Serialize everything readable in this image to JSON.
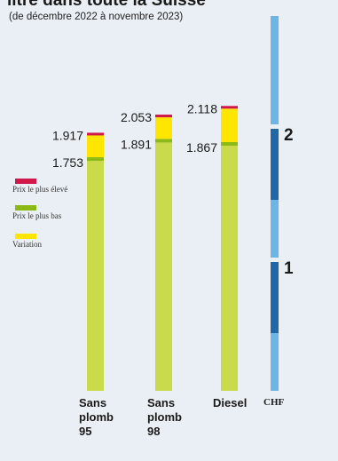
{
  "title": "litre dans toute la Suisse",
  "subtitle": "(de décembre 2022 à novembre 2023)",
  "colors": {
    "background": "#e9eff5",
    "lowest": "#8ab918",
    "lowest_light": "#c9da4a",
    "variation": "#ffe600",
    "highest": "#d0174a",
    "axis_light": "#6cb6e6",
    "axis_dark": "#1f67a6"
  },
  "legend": {
    "placement": "left",
    "items": [
      {
        "label": "Prix le plus élevé",
        "color": "#d0174a"
      },
      {
        "label": "Prix le plus bas",
        "color": "#8ab918"
      },
      {
        "label": "Variation",
        "color": "#ffe600"
      }
    ]
  },
  "chart_data": {
    "type": "bar",
    "stacked": true,
    "unit": "CHF",
    "ylim": [
      0,
      2.4
    ],
    "axis_ticks": [
      1,
      2
    ],
    "categories": [
      {
        "label_lines": [
          "Sans",
          "plomb",
          "95"
        ],
        "low": 1.753,
        "high": 1.917,
        "low_label": "1.753",
        "high_label": "1.917"
      },
      {
        "label_lines": [
          "Sans",
          "plomb",
          "98"
        ],
        "low": 1.891,
        "high": 2.053,
        "low_label": "1.891",
        "high_label": "2.053"
      },
      {
        "label_lines": [
          "Diesel"
        ],
        "low": 1.867,
        "high": 2.118,
        "low_label": "1.867",
        "high_label": "2.118"
      }
    ],
    "series": [
      {
        "name": "Prix le plus bas",
        "key": "low"
      },
      {
        "name": "Variation",
        "key": "high_minus_low"
      },
      {
        "name": "Prix le plus élevé",
        "key": "high"
      }
    ],
    "axis_label": "CHF",
    "tick_labels": [
      "1",
      "2"
    ]
  }
}
